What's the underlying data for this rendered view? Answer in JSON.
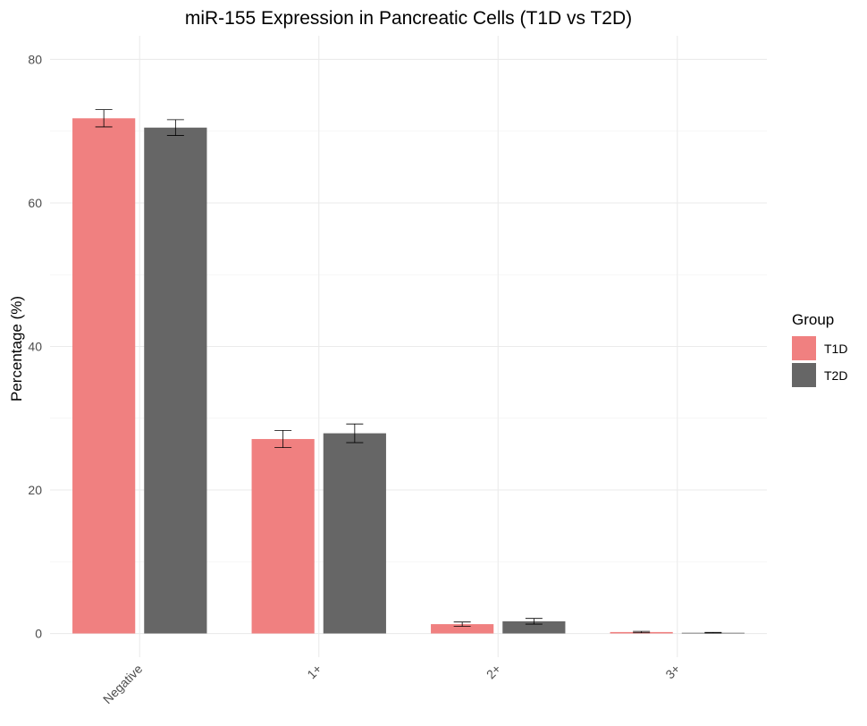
{
  "chart_data": {
    "type": "bar",
    "title": "miR-155 Expression in Pancreatic Cells (T1D vs T2D)",
    "xlabel": "",
    "ylabel": "Percentage (%)",
    "categories": [
      "Negative",
      "1+",
      "2+",
      "3+"
    ],
    "ylim": [
      -3.3,
      83.3
    ],
    "yticks": [
      0,
      20,
      40,
      60,
      80
    ],
    "grid": true,
    "legend": {
      "title": "Group",
      "position": "right"
    },
    "series": [
      {
        "name": "T1D",
        "color": "#F08080",
        "values": [
          71.8,
          27.1,
          1.3,
          0.2
        ],
        "error": [
          1.2,
          1.2,
          0.3,
          0.1
        ]
      },
      {
        "name": "T2D",
        "color": "#666666",
        "values": [
          70.5,
          27.9,
          1.7,
          0.1
        ],
        "error": [
          1.1,
          1.3,
          0.4,
          0.05
        ]
      }
    ]
  }
}
